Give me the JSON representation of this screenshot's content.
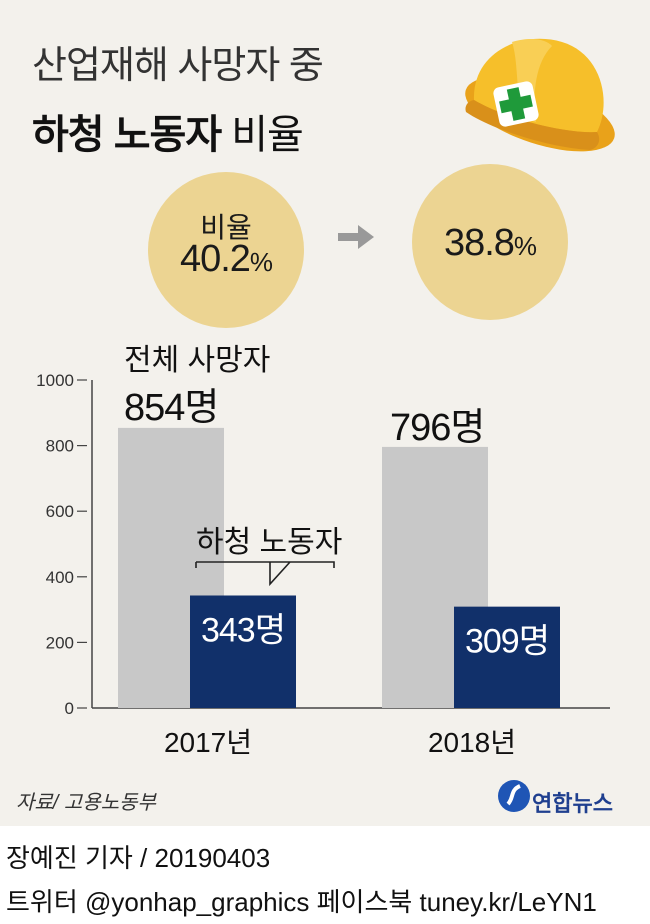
{
  "header": {
    "title_line1": "산업재해 사망자 중",
    "title_line2_bold": "하청 노동자",
    "title_line2_rest": " 비율"
  },
  "ratios": [
    {
      "label": "비율",
      "value": "40.2",
      "unit": "%"
    },
    {
      "label": "",
      "value": "38.8",
      "unit": "%"
    }
  ],
  "chart_data": {
    "type": "bar",
    "categories": [
      "2017년",
      "2018년"
    ],
    "series": [
      {
        "name": "전체 사망자",
        "values": [
          854,
          796
        ]
      },
      {
        "name": "하청 노동자",
        "values": [
          343,
          309
        ]
      }
    ],
    "value_labels": {
      "total": [
        "854명",
        "796명"
      ],
      "sub": [
        "343명",
        "309명"
      ]
    },
    "yticks": [
      "1000",
      "800",
      "600",
      "400",
      "200",
      "0"
    ],
    "ylim": [
      0,
      1000
    ],
    "colors": {
      "total": "#c8c8c8",
      "sub": "#11306a"
    },
    "grid": false
  },
  "source": "자료/ 고용노동부",
  "logo_text": "연합뉴스",
  "footer": {
    "reporter": "장예진 기자",
    "date": " / 20190403",
    "line2": "트위터 @yonhap_graphics  페이스북 tuney.kr/LeYN1"
  }
}
